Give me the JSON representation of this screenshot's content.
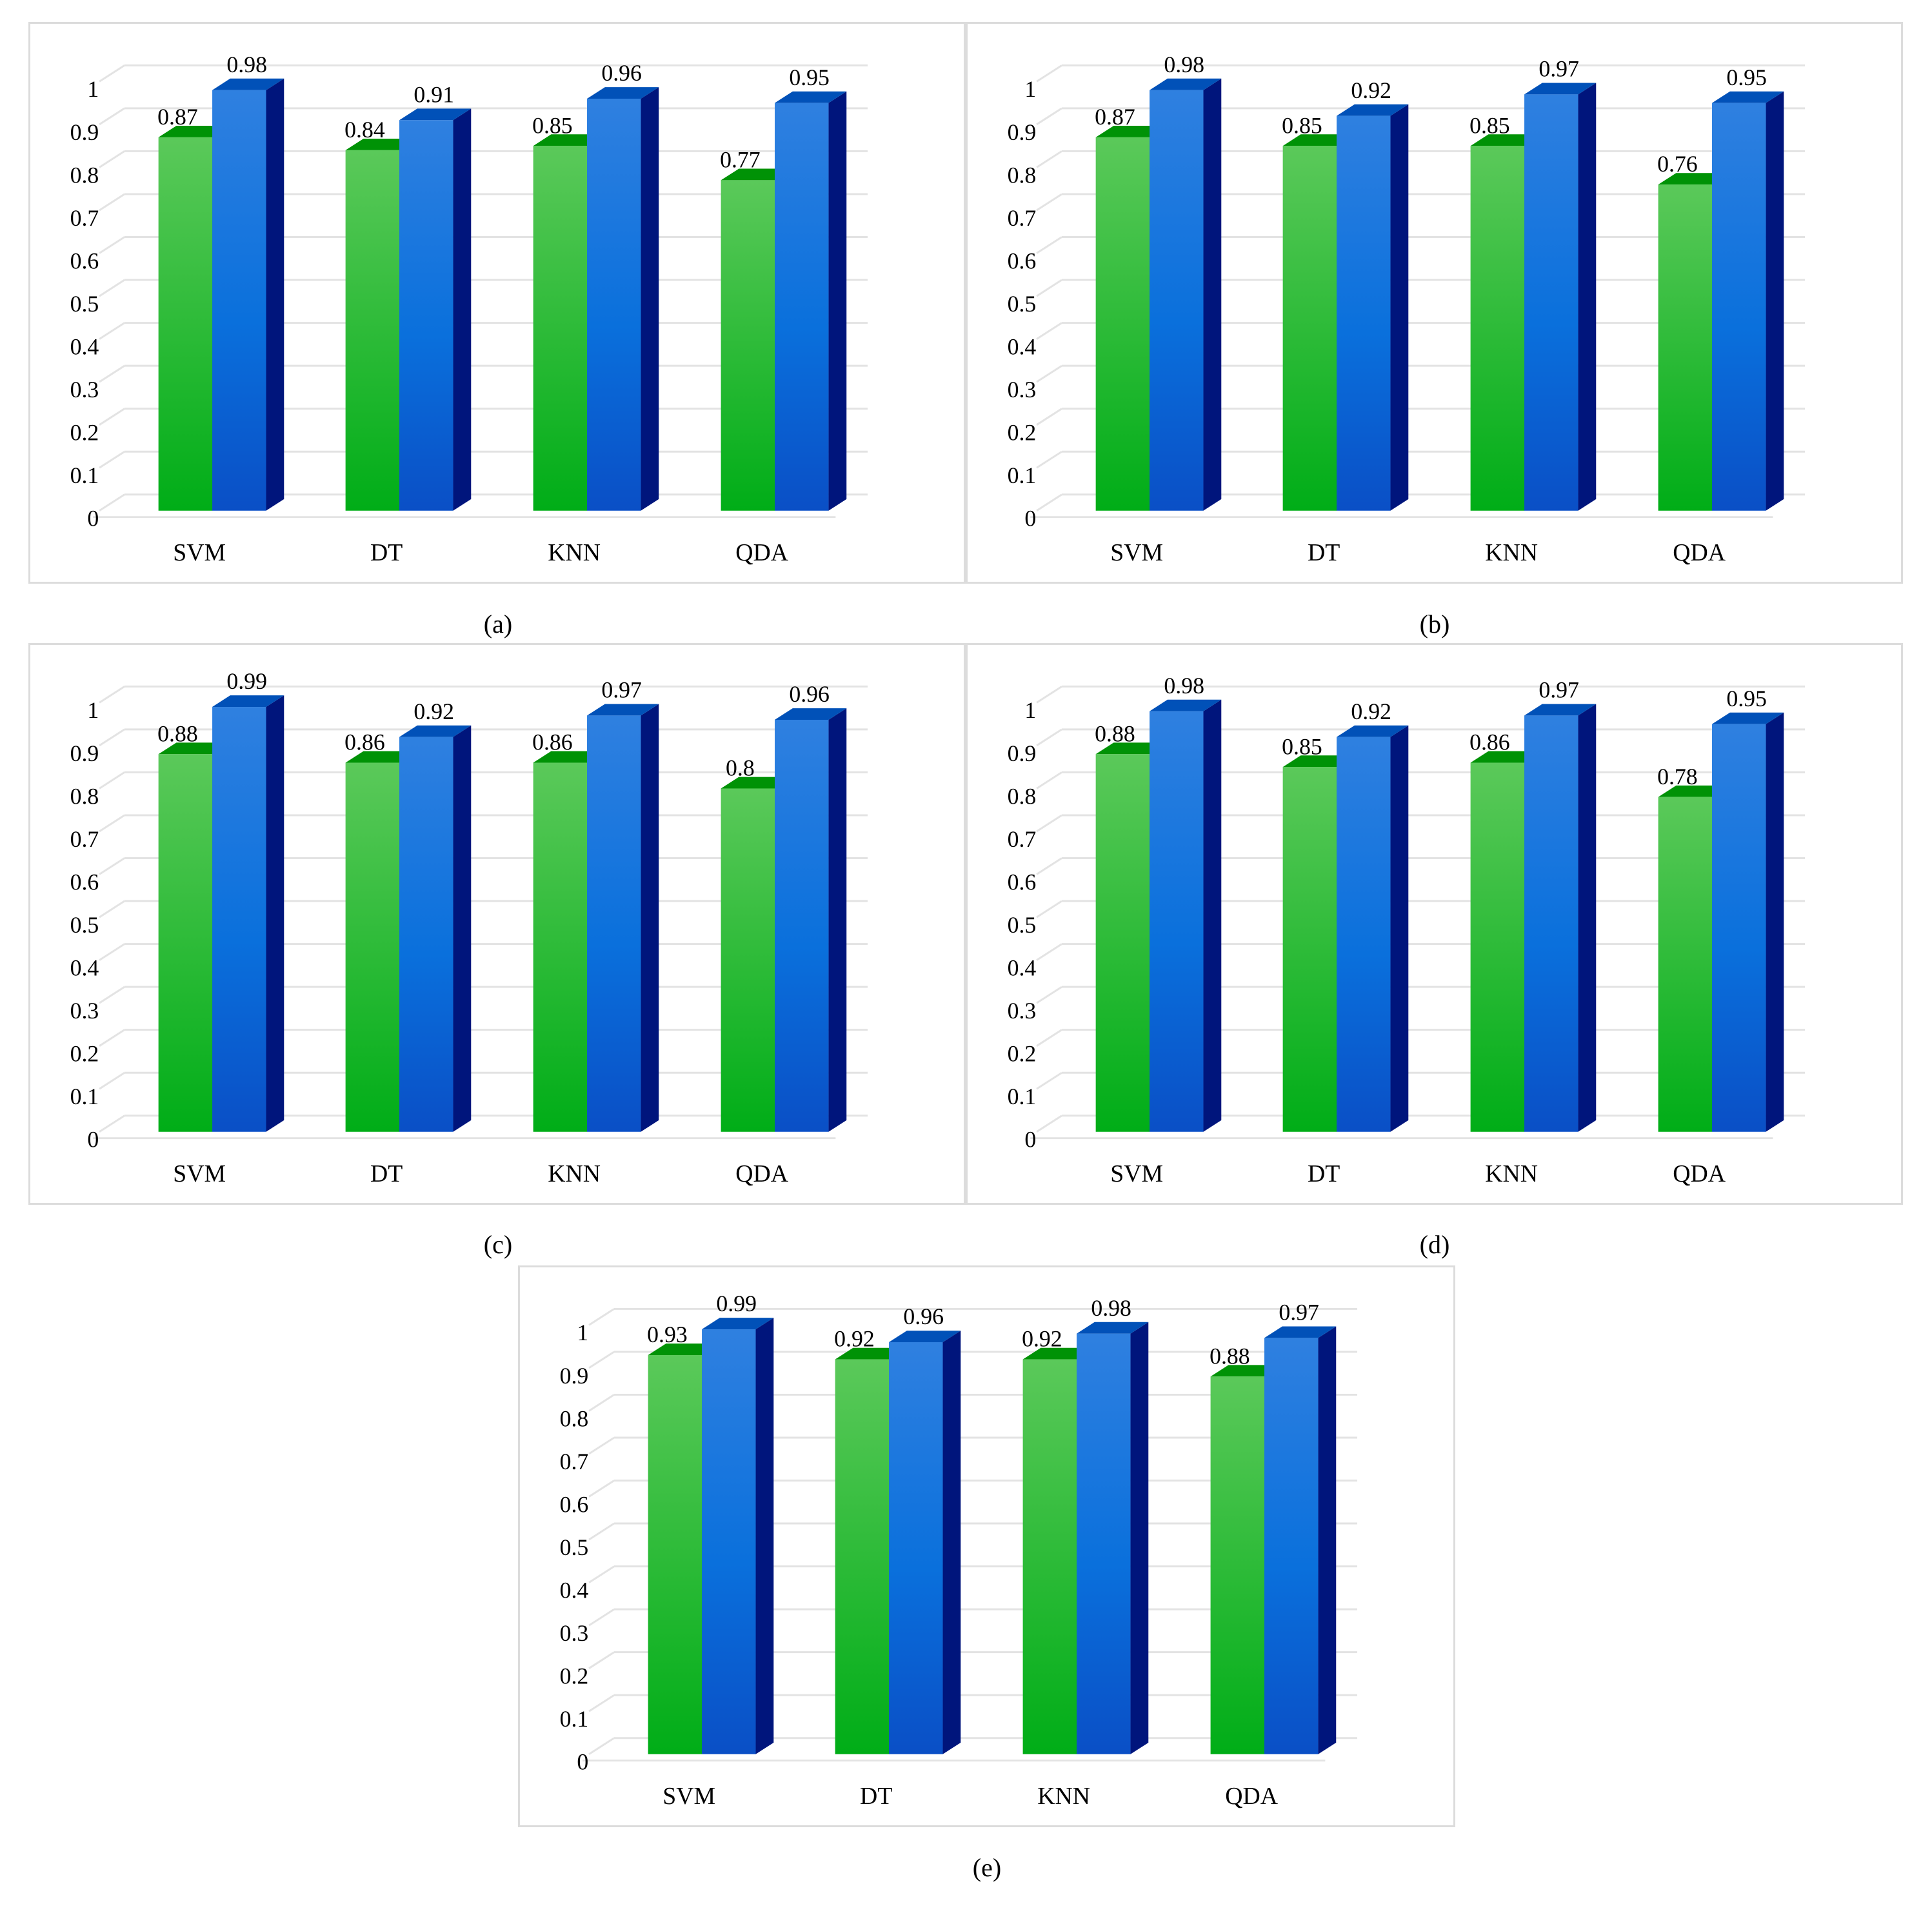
{
  "figure": {
    "colors": {
      "series_green": "#1fba2e",
      "series_blue": "#1f6fd6",
      "grid": "#e3e3e3"
    }
  },
  "chart_data": [
    {
      "id": "a",
      "caption": "(a)",
      "type": "bar",
      "bar_style": "3d",
      "categories": [
        "SVM",
        "DT",
        "KNN",
        "QDA"
      ],
      "ylim": [
        0,
        1
      ],
      "yticks": [
        "0",
        "0.1",
        "0.2",
        "0.3",
        "0.4",
        "0.5",
        "0.6",
        "0.7",
        "0.8",
        "0.9",
        "1"
      ],
      "grid": true,
      "legend": "none",
      "series": [
        {
          "color": "green",
          "values": [
            0.87,
            0.84,
            0.85,
            0.77
          ],
          "labels": [
            "0.87",
            "0.84",
            "0.85",
            "0.77"
          ]
        },
        {
          "color": "blue",
          "values": [
            0.98,
            0.91,
            0.96,
            0.95
          ],
          "labels": [
            "0.98",
            "0.91",
            "0.96",
            "0.95"
          ]
        }
      ]
    },
    {
      "id": "b",
      "caption": "(b)",
      "type": "bar",
      "bar_style": "3d",
      "categories": [
        "SVM",
        "DT",
        "KNN",
        "QDA"
      ],
      "ylim": [
        0,
        1
      ],
      "yticks": [
        "0",
        "0.1",
        "0.2",
        "0.3",
        "0.4",
        "0.5",
        "0.6",
        "0.7",
        "0.8",
        "0.9",
        "1"
      ],
      "grid": true,
      "legend": "none",
      "series": [
        {
          "color": "green",
          "values": [
            0.87,
            0.85,
            0.85,
            0.76
          ],
          "labels": [
            "0.87",
            "0.85",
            "0.85",
            "0.76"
          ]
        },
        {
          "color": "blue",
          "values": [
            0.98,
            0.92,
            0.97,
            0.95
          ],
          "labels": [
            "0.98",
            "0.92",
            "0.97",
            "0.95"
          ]
        }
      ]
    },
    {
      "id": "c",
      "caption": "(c)",
      "type": "bar",
      "bar_style": "3d",
      "categories": [
        "SVM",
        "DT",
        "KNN",
        "QDA"
      ],
      "ylim": [
        0,
        1
      ],
      "yticks": [
        "0",
        "0.1",
        "0.2",
        "0.3",
        "0.4",
        "0.5",
        "0.6",
        "0.7",
        "0.8",
        "0.9",
        "1"
      ],
      "grid": true,
      "legend": "none",
      "series": [
        {
          "color": "green",
          "values": [
            0.88,
            0.86,
            0.86,
            0.8
          ],
          "labels": [
            "0.88",
            "0.86",
            "0.86",
            "0.8"
          ]
        },
        {
          "color": "blue",
          "values": [
            0.99,
            0.92,
            0.97,
            0.96
          ],
          "labels": [
            "0.99",
            "0.92",
            "0.97",
            "0.96"
          ]
        }
      ]
    },
    {
      "id": "d",
      "caption": "(d)",
      "type": "bar",
      "bar_style": "3d",
      "categories": [
        "SVM",
        "DT",
        "KNN",
        "QDA"
      ],
      "ylim": [
        0,
        1
      ],
      "yticks": [
        "0",
        "0.1",
        "0.2",
        "0.3",
        "0.4",
        "0.5",
        "0.6",
        "0.7",
        "0.8",
        "0.9",
        "1"
      ],
      "grid": true,
      "legend": "none",
      "series": [
        {
          "color": "green",
          "values": [
            0.88,
            0.85,
            0.86,
            0.78
          ],
          "labels": [
            "0.88",
            "0.85",
            "0.86",
            "0.78"
          ]
        },
        {
          "color": "blue",
          "values": [
            0.98,
            0.92,
            0.97,
            0.95
          ],
          "labels": [
            "0.98",
            "0.92",
            "0.97",
            "0.95"
          ]
        }
      ]
    },
    {
      "id": "e",
      "caption": "(e)",
      "type": "bar",
      "bar_style": "3d",
      "categories": [
        "SVM",
        "DT",
        "KNN",
        "QDA"
      ],
      "ylim": [
        0,
        1
      ],
      "yticks": [
        "0",
        "0.1",
        "0.2",
        "0.3",
        "0.4",
        "0.5",
        "0.6",
        "0.7",
        "0.8",
        "0.9",
        "1"
      ],
      "grid": true,
      "legend": "none",
      "series": [
        {
          "color": "green",
          "values": [
            0.93,
            0.92,
            0.92,
            0.88
          ],
          "labels": [
            "0.93",
            "0.92",
            "0.92",
            "0.88"
          ]
        },
        {
          "color": "blue",
          "values": [
            0.99,
            0.96,
            0.98,
            0.97
          ],
          "labels": [
            "0.99",
            "0.96",
            "0.98",
            "0.97"
          ]
        }
      ]
    }
  ]
}
